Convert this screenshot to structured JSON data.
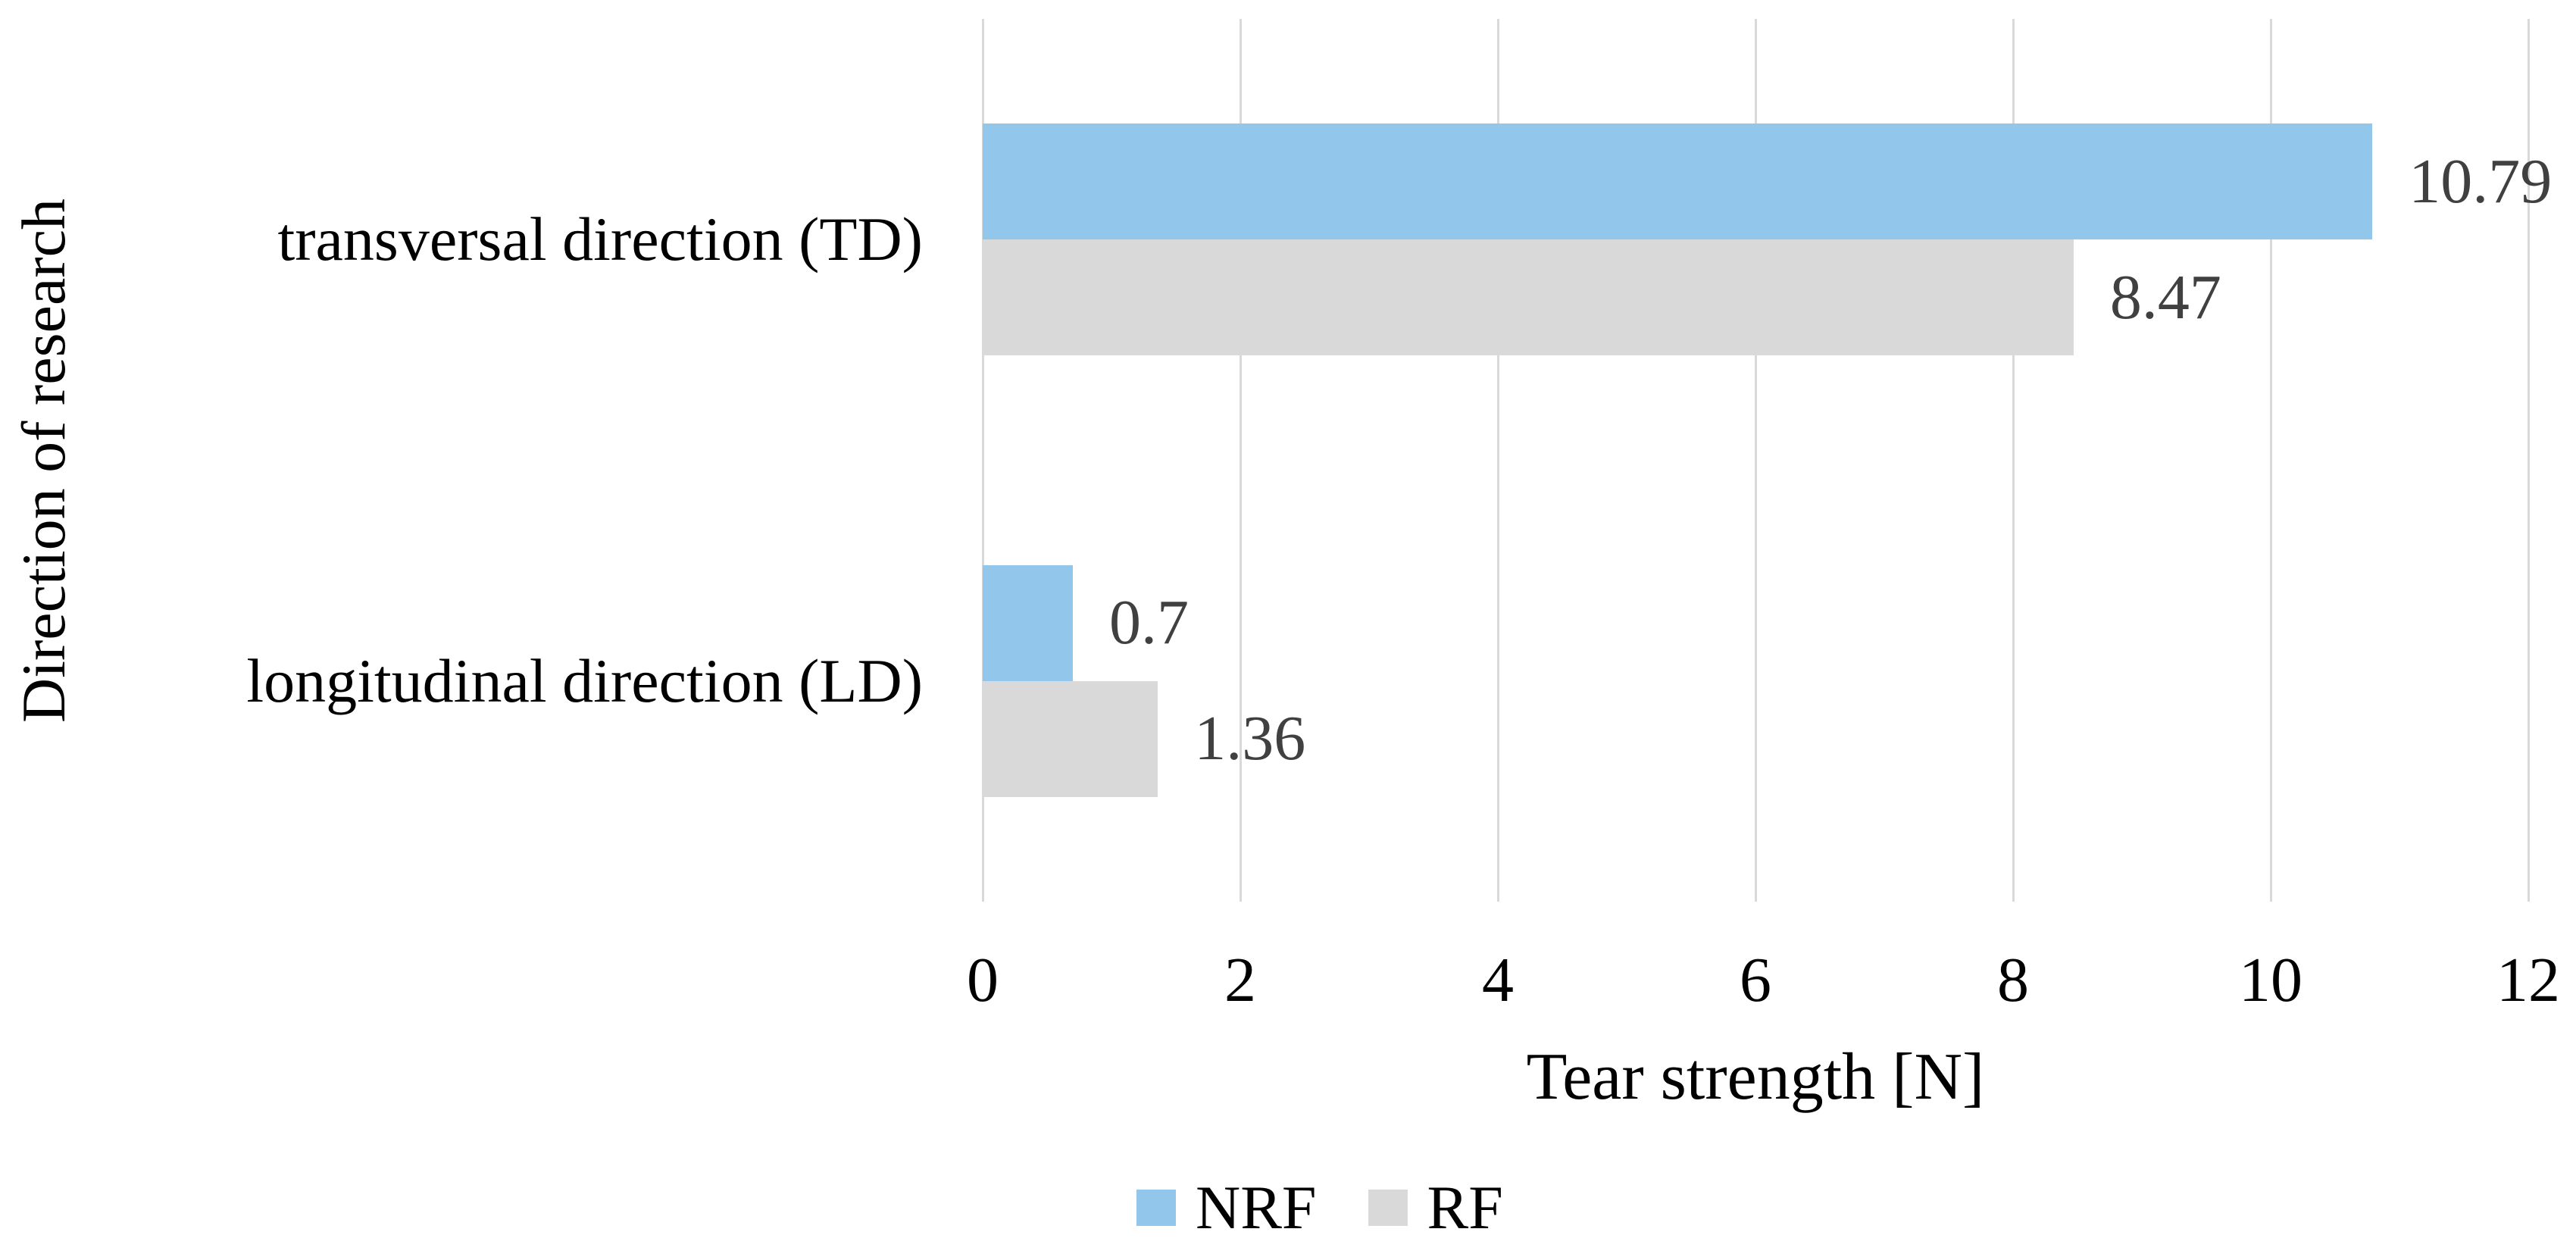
{
  "chart_data": {
    "type": "bar",
    "orientation": "horizontal",
    "title": "",
    "xlabel": "Tear strength [N]",
    "ylabel": "Direction of research",
    "categories": [
      "transversal direction (TD)",
      "longitudinal direction (LD)"
    ],
    "series": [
      {
        "name": "NRF",
        "color": "#92C7EB",
        "values": [
          10.79,
          0.7
        ],
        "value_labels": [
          "10.79",
          "0.7"
        ]
      },
      {
        "name": "RF",
        "color": "#D9D9D9",
        "values": [
          8.47,
          1.36
        ],
        "value_labels": [
          "8.47",
          "1.36"
        ]
      }
    ],
    "xlim": [
      0,
      12
    ],
    "xticks": [
      0,
      2,
      4,
      6,
      8,
      10,
      12
    ],
    "xtick_labels": [
      "0",
      "2",
      "4",
      "6",
      "8",
      "10",
      "12"
    ],
    "grid": "vertical",
    "gridline_color": "#D9D9D9",
    "background": "#FFFFFF",
    "axis_text_color": "#000000",
    "data_label_color": "#404040",
    "legend_position": "bottom"
  }
}
